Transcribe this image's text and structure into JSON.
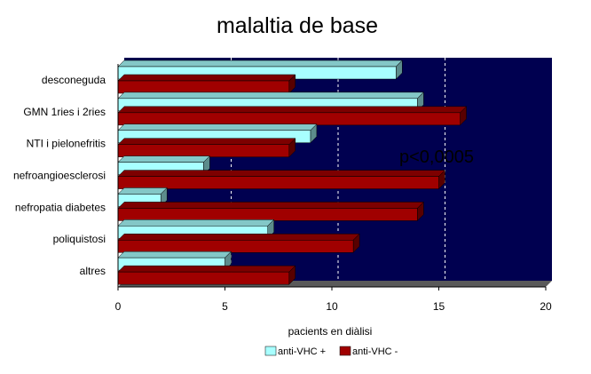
{
  "chart_data": {
    "type": "bar",
    "orientation": "horizontal",
    "title": "malaltia de base",
    "xlabel": "pacients en diàlisi",
    "ylabel": "",
    "xlim": [
      0,
      20
    ],
    "xticks": [
      0,
      5,
      10,
      15,
      20
    ],
    "grid": "vertical dashed",
    "background": "#000050",
    "categories": [
      "desconeguda",
      "GMN 1ries i 2ries",
      "NTI i pielonefritis",
      "nefroangioesclerosi",
      "nefropatia diabetes",
      "poliquistosi",
      "altres"
    ],
    "series": [
      {
        "name": "anti-VHC +",
        "color": "#a8ffff",
        "values": [
          13,
          14,
          9,
          4,
          2,
          7,
          5
        ]
      },
      {
        "name": "anti-VHC -",
        "color": "#a00000",
        "values": [
          8,
          16,
          8,
          15,
          14,
          11,
          8
        ]
      }
    ],
    "annotation": "p<0,0005",
    "legend_position": "bottom"
  }
}
